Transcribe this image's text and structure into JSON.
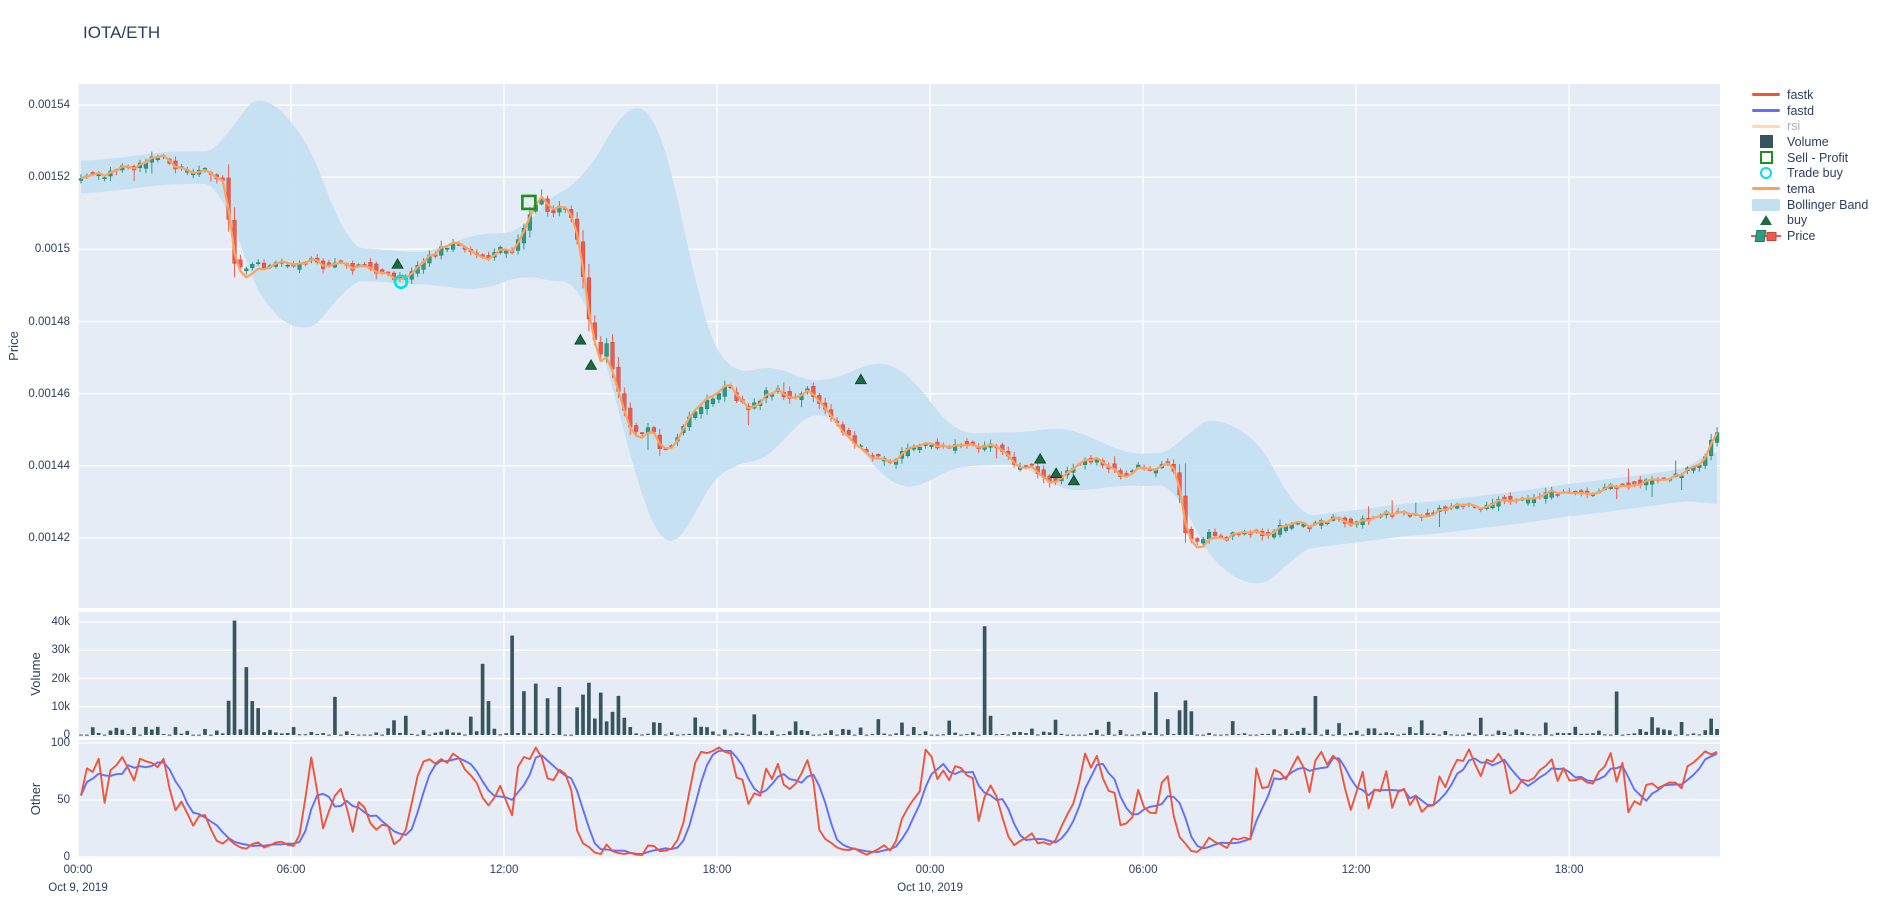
{
  "header": {
    "title": "IOTA/ETH"
  },
  "colors": {
    "plot_bg": "#e5ecf6",
    "grid": "#ffffff",
    "text": "#2a3f5f",
    "muted_text": "#a4aebb",
    "up": "#2e9c82",
    "up_edge": "#1d7a65",
    "down": "#ec5b4e",
    "down_edge": "#cc4437",
    "band": "#c2e0f2",
    "tema": "#ffa15a",
    "fastk": "#ef553b",
    "fastd": "#636efa",
    "rsi_faded": "#ffd9b0",
    "volume": "#36555c",
    "buy": "#1a6b3f",
    "sell": "#1f8f1f",
    "trade_buy": "#00e3e3"
  },
  "axes": {
    "x": {
      "hours_span": 46.25,
      "ticks": [
        {
          "label": "00:00",
          "h": 0,
          "date": "Oct 9, 2019"
        },
        {
          "label": "06:00",
          "h": 6
        },
        {
          "label": "12:00",
          "h": 12
        },
        {
          "label": "18:00",
          "h": 18
        },
        {
          "label": "00:00",
          "h": 24,
          "date": "Oct 10, 2019"
        },
        {
          "label": "06:00",
          "h": 30
        },
        {
          "label": "12:00",
          "h": 36
        },
        {
          "label": "18:00",
          "h": 42
        }
      ]
    },
    "price": {
      "title": "Price",
      "ticks": [
        "0.00154",
        "0.00152",
        "0.0015",
        "0.00148",
        "0.00146",
        "0.00144",
        "0.00142"
      ],
      "tick_values": [
        0.00154,
        0.00152,
        0.0015,
        0.00148,
        0.00146,
        0.00144,
        0.00142
      ]
    },
    "volume": {
      "title": "Volume",
      "ticks": [
        "40k",
        "30k",
        "20k",
        "10k",
        "0"
      ],
      "tick_values": [
        40000,
        30000,
        20000,
        10000,
        0
      ]
    },
    "other": {
      "title": "Other",
      "ticks": [
        "100",
        "50",
        "0"
      ],
      "tick_values": [
        100,
        50,
        0
      ]
    }
  },
  "legend": {
    "items": [
      {
        "label": "fastk",
        "symbol": "line",
        "color": "#ef553b"
      },
      {
        "label": "fastd",
        "symbol": "line",
        "color": "#636efa"
      },
      {
        "label": "rsi",
        "symbol": "line",
        "color": "#ffd9b0",
        "disabled": true
      },
      {
        "label": "Volume",
        "symbol": "square",
        "color": "#36555c"
      },
      {
        "label": "Sell - Profit",
        "symbol": "square-open",
        "color": "#1f8f1f"
      },
      {
        "label": "Trade buy",
        "symbol": "circle-open",
        "color": "#00e3e3"
      },
      {
        "label": "tema",
        "symbol": "line",
        "color": "#ffa15a"
      },
      {
        "label": "Bollinger Band",
        "symbol": "band",
        "color": "#c2e0f2"
      },
      {
        "label": "buy",
        "symbol": "triangle",
        "color": "#1a6b3f"
      },
      {
        "label": "Price",
        "symbol": "candle",
        "color": "#2e9c82"
      }
    ]
  },
  "chart_data": [
    {
      "panel": "price",
      "type": "candlestick",
      "title": "IOTA/ETH",
      "ylabel": "Price",
      "ylim": [
        0.0014006,
        0.0015458
      ],
      "x_start": "Oct 9, 2019 00:00",
      "x_end": "Oct 10, 2019 22:15",
      "price_scale": 1e-06,
      "candle_interval_min": 10,
      "seed": 7,
      "body_jitter": 0.9,
      "wick_jitter": 1.1,
      "overlays": [
        "Bollinger Band (±2.3σ, win 20)",
        "tema (triple EMA)"
      ],
      "close_anchors_h_vs_microprice": [
        [
          0,
          1520
        ],
        [
          0.4,
          1521
        ],
        [
          0.8,
          1520
        ],
        [
          1.2,
          1523
        ],
        [
          1.6,
          1522
        ],
        [
          2.0,
          1524
        ],
        [
          2.4,
          1526
        ],
        [
          2.7,
          1524
        ],
        [
          3.0,
          1522
        ],
        [
          3.3,
          1520.5
        ],
        [
          3.6,
          1522
        ],
        [
          3.9,
          1521
        ],
        [
          4.2,
          1519
        ],
        [
          4.45,
          1497
        ],
        [
          4.7,
          1494
        ],
        [
          5.0,
          1496
        ],
        [
          5.4,
          1494.5
        ],
        [
          5.8,
          1496
        ],
        [
          6.2,
          1495
        ],
        [
          6.6,
          1497
        ],
        [
          7.0,
          1495.5
        ],
        [
          7.4,
          1496.5
        ],
        [
          7.8,
          1495
        ],
        [
          8.2,
          1496
        ],
        [
          8.6,
          1493.5
        ],
        [
          9.0,
          1492
        ],
        [
          9.2,
          1491
        ],
        [
          9.5,
          1494
        ],
        [
          9.9,
          1497
        ],
        [
          10.3,
          1500
        ],
        [
          10.7,
          1502
        ],
        [
          11.1,
          1499
        ],
        [
          11.5,
          1497.5
        ],
        [
          11.9,
          1500
        ],
        [
          12.3,
          1499
        ],
        [
          12.6,
          1505
        ],
        [
          12.9,
          1512
        ],
        [
          13.1,
          1515
        ],
        [
          13.4,
          1509
        ],
        [
          13.7,
          1512
        ],
        [
          14.0,
          1509
        ],
        [
          14.2,
          1500
        ],
        [
          14.5,
          1478
        ],
        [
          14.8,
          1470
        ],
        [
          15.0,
          1474
        ],
        [
          15.3,
          1460
        ],
        [
          15.6,
          1452
        ],
        [
          15.9,
          1448
        ],
        [
          16.2,
          1452
        ],
        [
          16.5,
          1444
        ],
        [
          16.8,
          1446
        ],
        [
          17.2,
          1452
        ],
        [
          17.6,
          1456
        ],
        [
          18.0,
          1459
        ],
        [
          18.4,
          1462
        ],
        [
          18.7,
          1458
        ],
        [
          19.0,
          1455
        ],
        [
          19.4,
          1460
        ],
        [
          19.8,
          1461
        ],
        [
          20.2,
          1458
        ],
        [
          20.6,
          1462
        ],
        [
          21.0,
          1457
        ],
        [
          21.4,
          1452
        ],
        [
          21.8,
          1448
        ],
        [
          22.2,
          1444
        ],
        [
          22.6,
          1442
        ],
        [
          23.0,
          1441
        ],
        [
          23.4,
          1444
        ],
        [
          23.8,
          1445
        ],
        [
          24.2,
          1446
        ],
        [
          24.6,
          1444
        ],
        [
          25.0,
          1447
        ],
        [
          25.4,
          1445
        ],
        [
          25.8,
          1446
        ],
        [
          26.2,
          1444
        ],
        [
          26.5,
          1439
        ],
        [
          26.9,
          1441
        ],
        [
          27.2,
          1437
        ],
        [
          27.5,
          1436
        ],
        [
          27.9,
          1438
        ],
        [
          28.3,
          1441
        ],
        [
          28.7,
          1442
        ],
        [
          29.1,
          1440
        ],
        [
          29.5,
          1437
        ],
        [
          29.9,
          1440
        ],
        [
          30.3,
          1438
        ],
        [
          30.7,
          1441
        ],
        [
          31.0,
          1438
        ],
        [
          31.3,
          1421
        ],
        [
          31.7,
          1419
        ],
        [
          32.0,
          1422
        ],
        [
          32.4,
          1420
        ],
        [
          33.0,
          1422
        ],
        [
          33.6,
          1421
        ],
        [
          34.2,
          1424
        ],
        [
          34.8,
          1423
        ],
        [
          35.4,
          1425
        ],
        [
          36.0,
          1424
        ],
        [
          36.6,
          1426
        ],
        [
          37.2,
          1427
        ],
        [
          37.8,
          1426
        ],
        [
          38.4,
          1428
        ],
        [
          39.0,
          1429
        ],
        [
          39.6,
          1428
        ],
        [
          40.2,
          1431
        ],
        [
          40.8,
          1430
        ],
        [
          41.4,
          1432
        ],
        [
          42.0,
          1433
        ],
        [
          42.6,
          1432
        ],
        [
          43.2,
          1434
        ],
        [
          43.8,
          1435
        ],
        [
          44.4,
          1436
        ],
        [
          45.0,
          1437
        ],
        [
          45.5,
          1439
        ],
        [
          45.9,
          1442
        ],
        [
          46.05,
          1446
        ],
        [
          46.25,
          1450
        ]
      ],
      "buy_markers_h_price": [
        [
          9.0,
          1496
        ],
        [
          14.15,
          1475
        ],
        [
          14.45,
          1468
        ],
        [
          22.05,
          1464
        ],
        [
          27.1,
          1442
        ],
        [
          27.55,
          1438
        ],
        [
          28.05,
          1436
        ]
      ],
      "sell_profit_markers_h_price": [
        [
          12.7,
          1513
        ]
      ],
      "trade_buy_markers_h_price": [
        [
          9.1,
          1491
        ]
      ]
    },
    {
      "panel": "volume",
      "type": "bar",
      "ylabel": "Volume",
      "ylim": [
        0,
        43500
      ],
      "baseline_noise_max": 2800,
      "spikes_h_vs_volume": [
        [
          4.35,
          40500
        ],
        [
          4.6,
          24000
        ],
        [
          4.85,
          12000
        ],
        [
          5.05,
          9500
        ],
        [
          7.15,
          13500
        ],
        [
          8.9,
          5200
        ],
        [
          9.15,
          6800
        ],
        [
          10.9,
          6500
        ],
        [
          11.25,
          25200
        ],
        [
          11.5,
          12000
        ],
        [
          12.2,
          35200
        ],
        [
          12.5,
          15500
        ],
        [
          12.8,
          18200
        ],
        [
          13.1,
          13000
        ],
        [
          13.5,
          17000
        ],
        [
          13.9,
          9800
        ],
        [
          14.35,
          18500
        ],
        [
          14.6,
          15000
        ],
        [
          14.9,
          8200
        ],
        [
          15.3,
          6100
        ],
        [
          16.1,
          4500
        ],
        [
          17.3,
          6200
        ],
        [
          19.0,
          7300
        ],
        [
          20.1,
          4800
        ],
        [
          22.4,
          5600
        ],
        [
          23.1,
          4400
        ],
        [
          24.5,
          5100
        ],
        [
          25.4,
          38500
        ],
        [
          25.6,
          6800
        ],
        [
          27.5,
          5400
        ],
        [
          28.9,
          4700
        ],
        [
          30.3,
          15200
        ],
        [
          30.6,
          5600
        ],
        [
          31.3,
          8400
        ],
        [
          32.5,
          4900
        ],
        [
          34.7,
          13800
        ],
        [
          35.5,
          4200
        ],
        [
          37.8,
          5200
        ],
        [
          39.4,
          6100
        ],
        [
          41.2,
          4400
        ],
        [
          43.3,
          15400
        ],
        [
          44.2,
          6300
        ],
        [
          45.1,
          4600
        ],
        [
          46.0,
          5800
        ]
      ]
    },
    {
      "panel": "other",
      "type": "line",
      "ylabel": "Other",
      "ylim": [
        0,
        100
      ],
      "series": [
        {
          "name": "fastk",
          "color": "#ef553b",
          "derivation": "stochastic %K, window 12"
        },
        {
          "name": "fastd",
          "color": "#636efa",
          "derivation": "SMA(4) of fastk"
        },
        {
          "name": "rsi",
          "color": "#ffd9b0",
          "hidden": true
        }
      ]
    }
  ]
}
